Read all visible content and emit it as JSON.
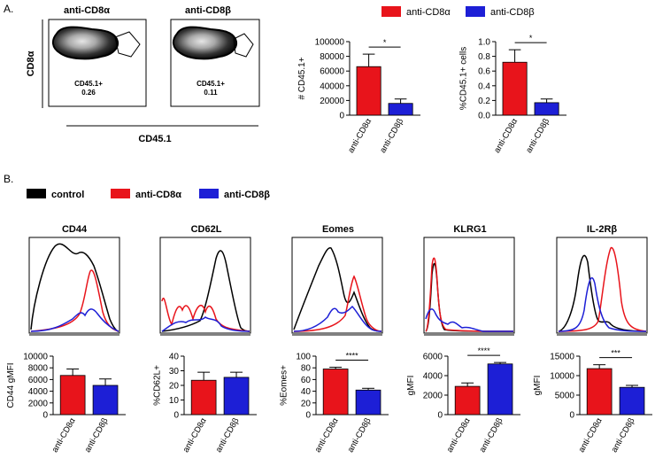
{
  "panels": {
    "a_label": "A.",
    "b_label": "B."
  },
  "flow": {
    "left_title": "anti-CD8α",
    "right_title": "anti-CD8β",
    "y_axis_label": "CD8α",
    "x_axis_label": "CD45.1",
    "left_gate_label": "CD45.1+",
    "left_gate_value": "0.26",
    "right_gate_label": "CD45.1+",
    "right_gate_value": "0.11"
  },
  "legend_a": [
    {
      "label": "anti-CD8α",
      "color": "#e8141b"
    },
    {
      "label": "anti-CD8β",
      "color": "#1d1fd6"
    }
  ],
  "legend_b": [
    {
      "label": "control",
      "color": "#000000"
    },
    {
      "label": "anti-CD8α",
      "color": "#e8141b"
    },
    {
      "label": "anti-CD8β",
      "color": "#1d1fd6"
    }
  ],
  "histograms": [
    {
      "title": "CD44"
    },
    {
      "title": "CD62L"
    },
    {
      "title": "Eomes"
    },
    {
      "title": "KLRG1"
    },
    {
      "title": "IL-2Rβ"
    }
  ],
  "chart_data": [
    {
      "type": "bar",
      "categories": [
        "anti-CD8α",
        "anti-CD8β"
      ],
      "values": [
        66000,
        16000
      ],
      "errors": [
        17000,
        6000
      ],
      "ylabel": "# CD45.1+",
      "ylim": [
        0,
        100000
      ],
      "yticks": [
        0,
        20000,
        40000,
        60000,
        80000,
        100000
      ],
      "ytick_labels": [
        "0",
        "20000",
        "40000",
        "60000",
        "80000",
        "100000"
      ],
      "significance": "*",
      "colors": [
        "#e8141b",
        "#1d1fd6"
      ]
    },
    {
      "type": "bar",
      "categories": [
        "anti-CD8α",
        "anti-CD8β"
      ],
      "values": [
        0.72,
        0.17
      ],
      "errors": [
        0.17,
        0.05
      ],
      "ylabel": "%CD45.1+ cells",
      "ylim": [
        0,
        1.0
      ],
      "yticks": [
        0,
        0.2,
        0.4,
        0.6,
        0.8,
        1.0
      ],
      "ytick_labels": [
        "0.0",
        "0.2",
        "0.4",
        "0.6",
        "0.8",
        "1.0"
      ],
      "significance": "*",
      "colors": [
        "#e8141b",
        "#1d1fd6"
      ]
    },
    {
      "type": "bar",
      "categories": [
        "anti-CD8α",
        "anti-CD8β"
      ],
      "values": [
        6700,
        5000
      ],
      "errors": [
        1100,
        1100
      ],
      "ylabel": "CD44 gMFI",
      "ylim": [
        0,
        10000
      ],
      "yticks": [
        0,
        2000,
        4000,
        6000,
        8000,
        10000
      ],
      "ytick_labels": [
        "0",
        "2000",
        "4000",
        "6000",
        "8000",
        "10000"
      ],
      "significance": "",
      "colors": [
        "#e8141b",
        "#1d1fd6"
      ]
    },
    {
      "type": "bar",
      "categories": [
        "anti-CD8α",
        "anti-CD8β"
      ],
      "values": [
        23.5,
        25.5
      ],
      "errors": [
        5.5,
        3.5
      ],
      "ylabel": "%CD62L+",
      "ylim": [
        0,
        40
      ],
      "yticks": [
        0,
        10,
        20,
        30,
        40
      ],
      "ytick_labels": [
        "0",
        "10",
        "20",
        "30",
        "40"
      ],
      "significance": "",
      "colors": [
        "#e8141b",
        "#1d1fd6"
      ]
    },
    {
      "type": "bar",
      "categories": [
        "anti-CD8α",
        "anti-CD8β"
      ],
      "values": [
        78,
        42
      ],
      "errors": [
        3,
        3
      ],
      "ylabel": "%Eomes+",
      "ylim": [
        0,
        100
      ],
      "yticks": [
        0,
        20,
        40,
        60,
        80,
        100
      ],
      "ytick_labels": [
        "0",
        "20",
        "40",
        "60",
        "80",
        "100"
      ],
      "significance": "****",
      "colors": [
        "#e8141b",
        "#1d1fd6"
      ]
    },
    {
      "type": "bar",
      "categories": [
        "anti-CD8α",
        "anti-CD8β"
      ],
      "values": [
        2900,
        5200
      ],
      "errors": [
        350,
        150
      ],
      "ylabel": "gMFI",
      "ylim": [
        0,
        6000
      ],
      "yticks": [
        0,
        2000,
        4000,
        6000
      ],
      "ytick_labels": [
        "0",
        "2000",
        "4000",
        "6000"
      ],
      "significance": "****",
      "colors": [
        "#e8141b",
        "#1d1fd6"
      ]
    },
    {
      "type": "bar",
      "categories": [
        "anti-CD8α",
        "anti-CD8β"
      ],
      "values": [
        11800,
        7000
      ],
      "errors": [
        1000,
        500
      ],
      "ylabel": "gMFI",
      "ylim": [
        0,
        15000
      ],
      "yticks": [
        0,
        5000,
        10000,
        15000
      ],
      "ytick_labels": [
        "0",
        "5000",
        "10000",
        "15000"
      ],
      "significance": "***",
      "colors": [
        "#e8141b",
        "#1d1fd6"
      ]
    }
  ]
}
